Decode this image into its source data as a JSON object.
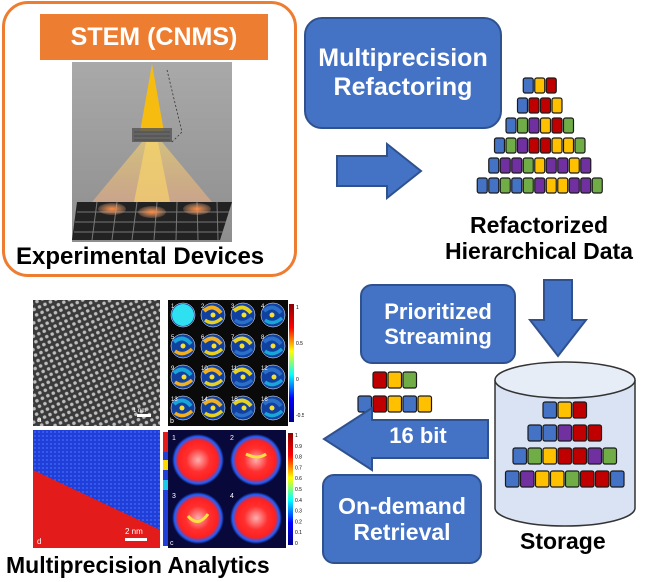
{
  "device": {
    "badge": "STEM (CNMS)",
    "caption": "Experimental Devices"
  },
  "steps": {
    "refactoring": "Multiprecision\nRefactoring",
    "refactorized_caption": "Refactorized\nHierarchical Data",
    "streaming": "Prioritized\nStreaming",
    "storage_caption": "Storage",
    "retrieval": "On-demand\nRetrieval",
    "bit_label": "16 bit",
    "analytics_caption": "Multiprecision Analytics"
  },
  "panels": {
    "a": {
      "letter": "a",
      "scale": "1 nm"
    },
    "b": {
      "letter": "b",
      "numbers": [
        "1",
        "2",
        "3",
        "4",
        "5",
        "6",
        "7",
        "8",
        "9",
        "10",
        "11",
        "12",
        "13",
        "14",
        "15",
        "16"
      ],
      "scale_ticks": [
        "1",
        "0.5",
        "0",
        "-0.5"
      ]
    },
    "c": {
      "letter": "c",
      "numbers": [
        "1",
        "2",
        "3",
        "4"
      ],
      "scale_ticks": [
        "1",
        "0.9",
        "0.8",
        "0.7",
        "0.6",
        "0.5",
        "0.4",
        "0.3",
        "0.2",
        "0.1",
        "0"
      ]
    },
    "d": {
      "letter": "d",
      "scale": "2 nm"
    }
  },
  "colors": {
    "orange_frame": "#ed7d31",
    "blue": "#4472c4",
    "block_red": "#c00000",
    "block_yellow": "#ffc000",
    "block_green": "#70ad47",
    "block_purple": "#7030a0",
    "block_blue": "#4472c4"
  }
}
